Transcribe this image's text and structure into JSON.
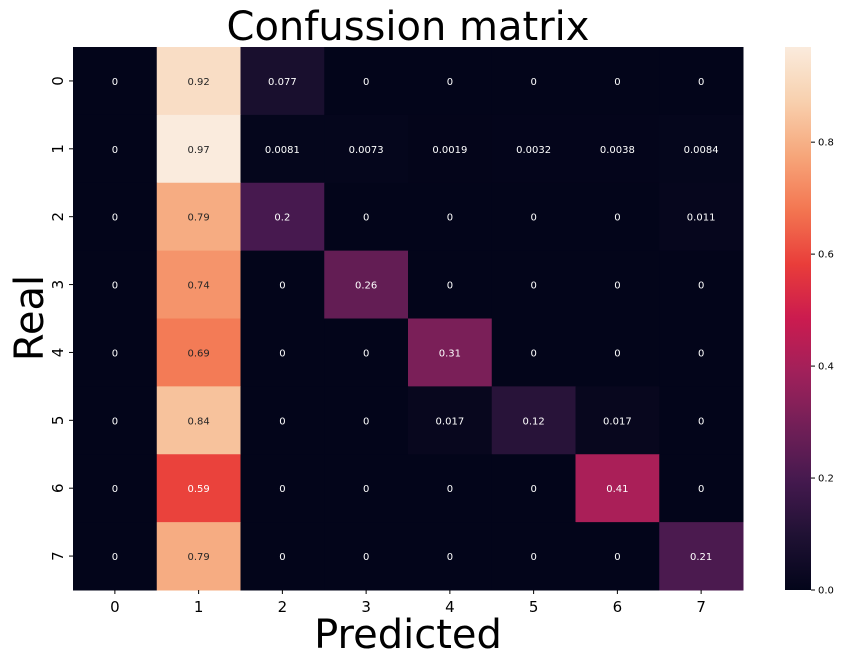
{
  "chart_data": {
    "type": "heatmap",
    "title": "Confussion matrix",
    "xlabel": "Predicted",
    "ylabel": "Real",
    "x_categories": [
      "0",
      "1",
      "2",
      "3",
      "4",
      "5",
      "6",
      "7"
    ],
    "y_categories": [
      "0",
      "1",
      "2",
      "3",
      "4",
      "5",
      "6",
      "7"
    ],
    "annotations": [
      [
        "0",
        "0.92",
        "0.077",
        "0",
        "0",
        "0",
        "0",
        "0"
      ],
      [
        "0",
        "0.97",
        "0.0081",
        "0.0073",
        "0.0019",
        "0.0032",
        "0.0038",
        "0.0084"
      ],
      [
        "0",
        "0.79",
        "0.2",
        "0",
        "0",
        "0",
        "0",
        "0.011"
      ],
      [
        "0",
        "0.74",
        "0",
        "0.26",
        "0",
        "0",
        "0",
        "0"
      ],
      [
        "0",
        "0.69",
        "0",
        "0",
        "0.31",
        "0",
        "0",
        "0"
      ],
      [
        "0",
        "0.84",
        "0",
        "0",
        "0.017",
        "0.12",
        "0.017",
        "0"
      ],
      [
        "0",
        "0.59",
        "0",
        "0",
        "0",
        "0",
        "0.41",
        "0"
      ],
      [
        "0",
        "0.79",
        "0",
        "0",
        "0",
        "0",
        "0",
        "0.21"
      ]
    ],
    "values": [
      [
        0,
        0.92,
        0.077,
        0,
        0,
        0,
        0,
        0
      ],
      [
        0,
        0.97,
        0.0081,
        0.0073,
        0.0019,
        0.0032,
        0.0038,
        0.0084
      ],
      [
        0,
        0.79,
        0.2,
        0,
        0,
        0,
        0,
        0.011
      ],
      [
        0,
        0.74,
        0,
        0.26,
        0,
        0,
        0,
        0
      ],
      [
        0,
        0.69,
        0,
        0,
        0.31,
        0,
        0,
        0
      ],
      [
        0,
        0.84,
        0,
        0,
        0.017,
        0.12,
        0.017,
        0
      ],
      [
        0,
        0.59,
        0,
        0,
        0,
        0,
        0.41,
        0
      ],
      [
        0,
        0.79,
        0,
        0,
        0,
        0,
        0,
        0.21
      ]
    ],
    "colorbar": {
      "range": [
        0,
        0.97
      ],
      "ticks": [
        "0.0",
        "0.2",
        "0.4",
        "0.6",
        "0.8"
      ],
      "colormap": "rocket"
    },
    "grid": false
  }
}
